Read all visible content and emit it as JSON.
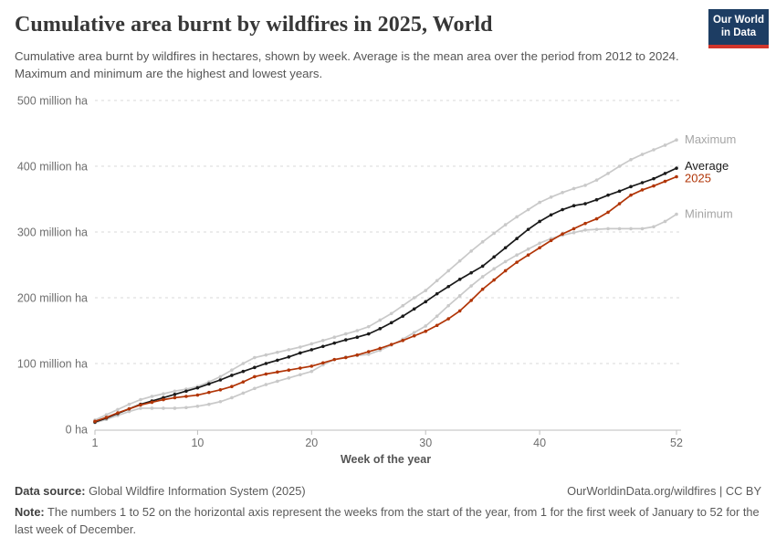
{
  "header": {
    "title": "Cumulative area burnt by wildfires in 2025, World",
    "subtitle": "Cumulative area burnt by wildfires in hectares, shown by week. Average is the mean area over the period from 2012 to 2024. Maximum and minimum are the highest and lowest years.",
    "logo": {
      "line1": "Our World",
      "line2": "in Data"
    }
  },
  "colors": {
    "accent_red": "#b13507",
    "line_gray": "#c9c9c9",
    "line_black": "#1a1a1a",
    "legend_gray_text": "#a5a5a5",
    "grid": "#d8d8d8",
    "axis_line": "#bdbdbd",
    "axis_text": "#6e6e6e",
    "logo_navy": "#1d3d63",
    "logo_red": "#d1352b"
  },
  "chart_data": {
    "type": "line",
    "title": "Cumulative area burnt by wildfires in 2025, World",
    "unit": "million ha",
    "xlabel": "Week of the year",
    "ylabel": "",
    "xlim": [
      1,
      52
    ],
    "ylim": [
      0,
      500
    ],
    "grid": "horizontal dashed",
    "legend_position": "right of line ends",
    "x_ticks": [
      1,
      10,
      20,
      30,
      40,
      52
    ],
    "y_ticks": [
      {
        "value": 0,
        "label": "0 ha"
      },
      {
        "value": 100,
        "label": "100 million ha"
      },
      {
        "value": 200,
        "label": "200 million ha"
      },
      {
        "value": 300,
        "label": "300 million ha"
      },
      {
        "value": 400,
        "label": "400 million ha"
      },
      {
        "value": 500,
        "label": "500 million ha"
      }
    ],
    "x": [
      1,
      2,
      3,
      4,
      5,
      6,
      7,
      8,
      9,
      10,
      11,
      12,
      13,
      14,
      15,
      16,
      17,
      18,
      19,
      20,
      21,
      22,
      23,
      24,
      25,
      26,
      27,
      28,
      29,
      30,
      31,
      32,
      33,
      34,
      35,
      36,
      37,
      38,
      39,
      40,
      41,
      42,
      43,
      44,
      45,
      46,
      47,
      48,
      49,
      50,
      51,
      52
    ],
    "series": [
      {
        "name": "Maximum",
        "color": "#c9c9c9",
        "label_color": "#a5a5a5",
        "values": [
          14,
          22,
          30,
          38,
          45,
          50,
          54,
          58,
          61,
          65,
          72,
          80,
          90,
          100,
          109,
          113,
          117,
          121,
          125,
          130,
          135,
          140,
          145,
          150,
          156,
          166,
          176,
          188,
          200,
          211,
          226,
          241,
          256,
          271,
          285,
          298,
          311,
          323,
          334,
          345,
          353,
          360,
          366,
          371,
          379,
          389,
          400,
          410,
          418,
          425,
          432,
          440
        ]
      },
      {
        "name": "Minimum",
        "color": "#c9c9c9",
        "label_color": "#a5a5a5",
        "values": [
          10,
          15,
          21,
          27,
          32,
          32,
          32,
          32,
          33,
          35,
          38,
          42,
          48,
          55,
          62,
          68,
          73,
          78,
          83,
          88,
          98,
          106,
          110,
          112,
          114,
          120,
          128,
          137,
          147,
          157,
          172,
          188,
          203,
          218,
          232,
          244,
          255,
          265,
          274,
          283,
          290,
          295,
          299,
          303,
          304,
          305,
          305,
          305,
          305,
          308,
          316,
          327
        ]
      },
      {
        "name": "Average",
        "color": "#1a1a1a",
        "label_color": "#1a1a1a",
        "values": [
          11,
          17,
          24,
          31,
          38,
          43,
          48,
          53,
          58,
          63,
          69,
          75,
          82,
          88,
          94,
          100,
          105,
          110,
          116,
          121,
          126,
          131,
          136,
          140,
          145,
          153,
          162,
          172,
          183,
          194,
          206,
          217,
          228,
          238,
          248,
          262,
          276,
          290,
          304,
          316,
          326,
          334,
          340,
          343,
          349,
          356,
          362,
          369,
          375,
          381,
          389,
          397
        ]
      },
      {
        "name": "2025",
        "color": "#b13507",
        "label_color": "#b13507",
        "values": [
          12,
          18,
          25,
          31,
          37,
          41,
          45,
          48,
          50,
          52,
          56,
          60,
          65,
          72,
          80,
          84,
          87,
          90,
          93,
          96,
          101,
          106,
          109,
          113,
          118,
          123,
          129,
          135,
          142,
          149,
          158,
          168,
          180,
          196,
          213,
          227,
          241,
          254,
          265,
          276,
          287,
          297,
          305,
          313,
          320,
          330,
          343,
          356,
          364,
          370,
          377,
          384
        ]
      }
    ]
  },
  "footer": {
    "data_source_label": "Data source:",
    "data_source": " Global Wildfire Information System (2025)",
    "link": "OurWorldinData.org/wildfires | CC BY",
    "note_label": "Note:",
    "note": " The numbers 1 to 52 on the horizontal axis represent the weeks from the start of the year, from 1 for the first week of January to 52 for the last week of December."
  }
}
